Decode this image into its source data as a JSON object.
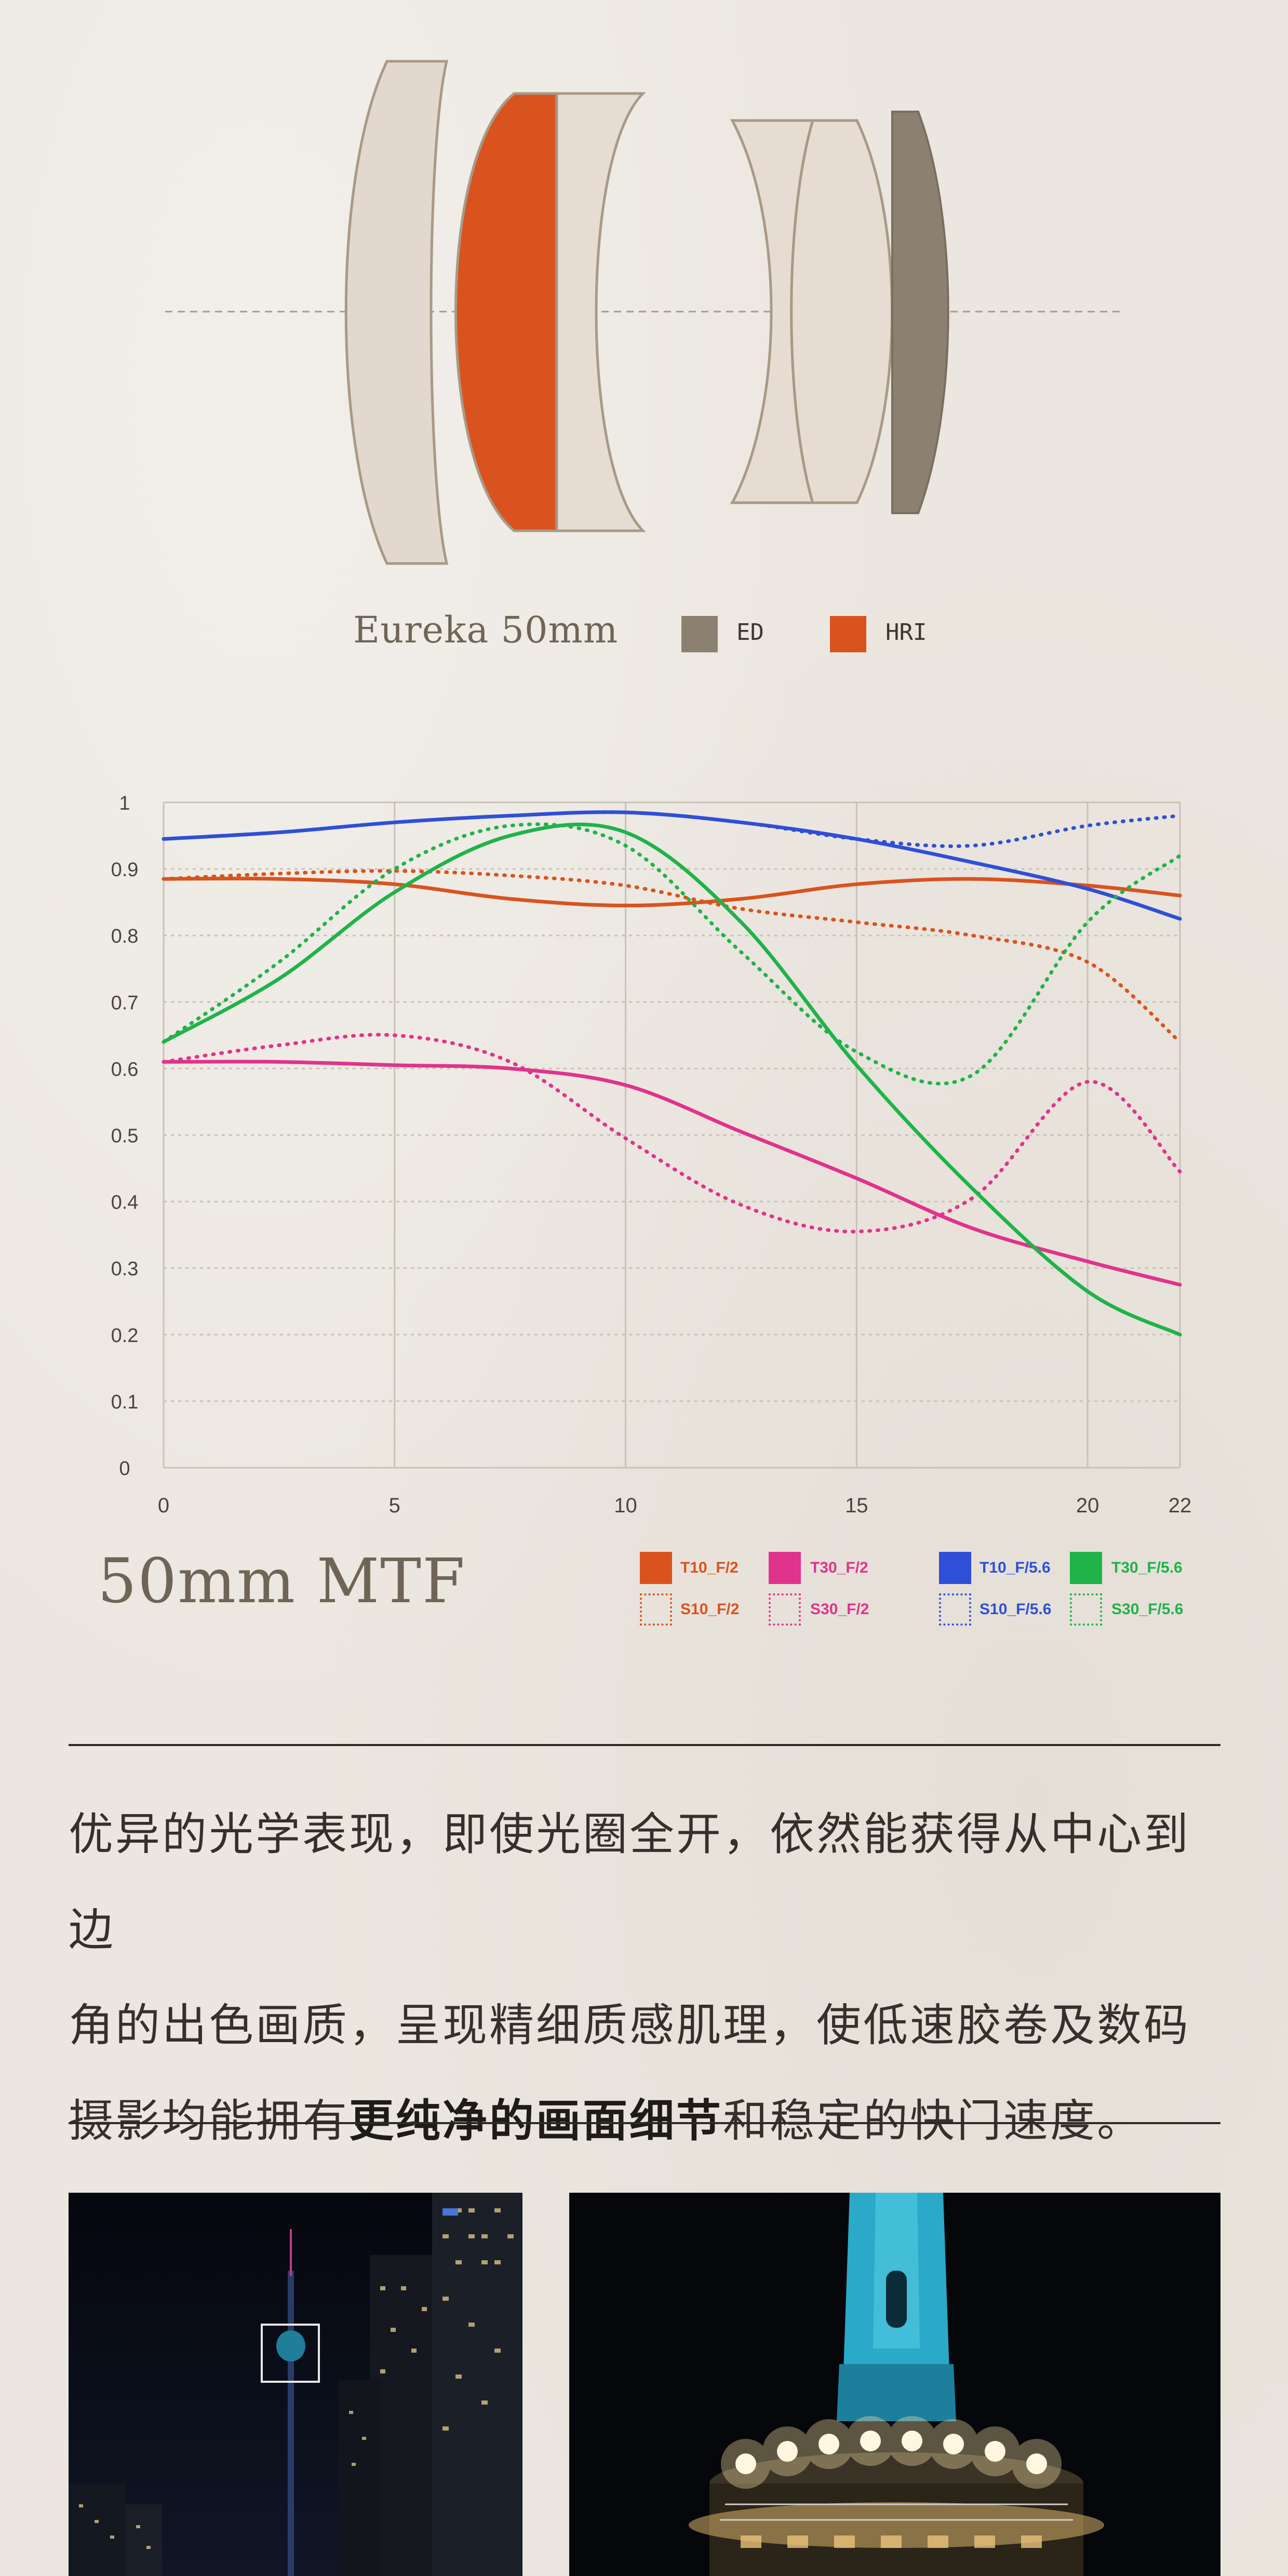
{
  "lens": {
    "caption": "Eureka 50mm",
    "legend": [
      {
        "label": "ED",
        "color": "#8c8070"
      },
      {
        "label": "HRI",
        "color": "#d9531e"
      }
    ]
  },
  "chart_data": {
    "type": "line",
    "title": "50mm MTF",
    "x_ticks": [
      "0",
      "5",
      "10",
      "15",
      "20",
      "22"
    ],
    "y_ticks": [
      "1",
      "0.9",
      "0.8",
      "0.7",
      "0.6",
      "0.5",
      "0.4",
      "0.3",
      "0.2",
      "0.1",
      "0"
    ],
    "xlim": [
      0,
      22
    ],
    "ylim": [
      0,
      1
    ],
    "grid": true,
    "series": [
      {
        "name": "T10_F/2",
        "color": "#d9531e",
        "style": "solid",
        "x": [
          0,
          2.5,
          5,
          7.5,
          10,
          12.5,
          15,
          17.5,
          20,
          22
        ],
        "y": [
          0.885,
          0.885,
          0.877,
          0.855,
          0.845,
          0.855,
          0.877,
          0.885,
          0.875,
          0.86
        ]
      },
      {
        "name": "S10_F/2",
        "color": "#d9531e",
        "style": "dotted",
        "x": [
          0,
          2.5,
          5,
          7.5,
          10,
          12.5,
          15,
          17.5,
          20,
          22
        ],
        "y": [
          0.885,
          0.893,
          0.897,
          0.89,
          0.875,
          0.84,
          0.82,
          0.8,
          0.76,
          0.64
        ]
      },
      {
        "name": "T30_F/2",
        "color": "#e0338c",
        "style": "solid",
        "x": [
          0,
          2.5,
          5,
          7.5,
          10,
          12.5,
          15,
          17.5,
          20,
          22
        ],
        "y": [
          0.61,
          0.61,
          0.605,
          0.6,
          0.575,
          0.505,
          0.435,
          0.36,
          0.31,
          0.275
        ]
      },
      {
        "name": "S30_F/2",
        "color": "#e0338c",
        "style": "dotted",
        "x": [
          0,
          2.5,
          5,
          7.5,
          10,
          12.5,
          15,
          17.5,
          20,
          22
        ],
        "y": [
          0.61,
          0.635,
          0.65,
          0.61,
          0.495,
          0.395,
          0.355,
          0.405,
          0.58,
          0.445
        ]
      },
      {
        "name": "T10_F/5.6",
        "color": "#2f4fd6",
        "style": "solid",
        "x": [
          0,
          2.5,
          5,
          7.5,
          10,
          12.5,
          15,
          17.5,
          20,
          22
        ],
        "y": [
          0.945,
          0.955,
          0.97,
          0.98,
          0.985,
          0.97,
          0.945,
          0.91,
          0.87,
          0.825
        ]
      },
      {
        "name": "S10_F/5.6",
        "color": "#2f4fd6",
        "style": "dotted",
        "x": [
          0,
          2.5,
          5,
          7.5,
          10,
          12.5,
          15,
          17.5,
          20,
          22
        ],
        "y": [
          0.945,
          0.955,
          0.97,
          0.98,
          0.985,
          0.97,
          0.945,
          0.935,
          0.965,
          0.98
        ]
      },
      {
        "name": "T30_F/5.6",
        "color": "#1fb34a",
        "style": "solid",
        "x": [
          0,
          2.5,
          5,
          7.5,
          10,
          12.5,
          15,
          17.5,
          20,
          22
        ],
        "y": [
          0.64,
          0.735,
          0.865,
          0.95,
          0.955,
          0.82,
          0.605,
          0.42,
          0.265,
          0.2
        ]
      },
      {
        "name": "S30_F/5.6",
        "color": "#1fb34a",
        "style": "dotted",
        "x": [
          0,
          2.5,
          5,
          7.5,
          10,
          12.5,
          15,
          17.5,
          20,
          22
        ],
        "y": [
          0.64,
          0.76,
          0.9,
          0.965,
          0.935,
          0.775,
          0.625,
          0.59,
          0.82,
          0.92
        ]
      }
    ]
  },
  "description": {
    "line1": "优异的光学表现，即使光圈全开，依然能获得从中心到边",
    "line2": "角的出色画质，呈现精细质感肌理，使低速胶卷及数码",
    "line3_prefix": "摄影均能拥有",
    "line3_bold": "更纯净的画面细节",
    "line3_suffix": "和稳定的快门速度。"
  }
}
